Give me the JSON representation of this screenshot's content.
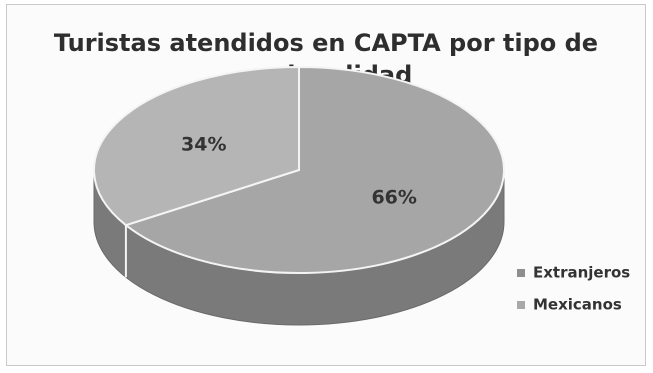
{
  "chart_data": {
    "type": "pie",
    "title_line1": "Turistas atendidos en CAPTA por tipo de",
    "title_line2": "nacionalidad",
    "categories": [
      "Extranjeros",
      "Mexicanos"
    ],
    "values": [
      66,
      34
    ],
    "labels": [
      "66%",
      "34%"
    ],
    "legend_position": "right",
    "three_d": true,
    "colors": {
      "Extranjeros_top": "#a6a6a6",
      "Mexicanos_top": "#b5b5b5",
      "side": "#7a7a7a",
      "swatch_Extranjeros": "#8f8f8f",
      "swatch_Mexicanos": "#a8a8a8"
    }
  }
}
